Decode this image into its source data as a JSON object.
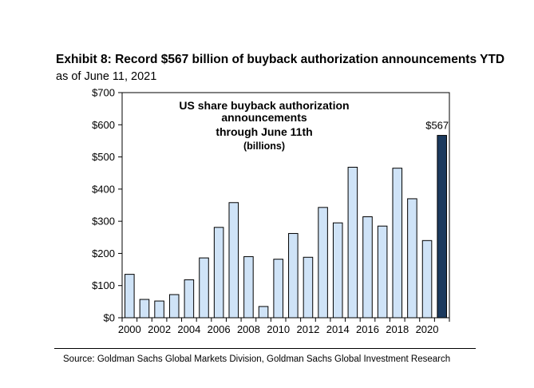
{
  "header": {
    "title": "Exhibit 8: Record $567 billion of buyback authorization announcements YTD",
    "subtitle": "as of June 11, 2021"
  },
  "footer": {
    "source": "Source: Goldman Sachs Global Markets Division, Goldman Sachs Global Investment Research"
  },
  "chart_data": {
    "type": "bar",
    "title": "Exhibit 8: Record $567 billion of buyback authorization announcements YTD",
    "subtitle": "as of June 11, 2021",
    "annotation_lines": [
      "US share buyback authorization",
      "announcements",
      "through June 11th",
      "(billions)"
    ],
    "categories": [
      "2000",
      "2001",
      "2002",
      "2003",
      "2004",
      "2005",
      "2006",
      "2007",
      "2008",
      "2009",
      "2010",
      "2011",
      "2012",
      "2013",
      "2014",
      "2015",
      "2016",
      "2017",
      "2018",
      "2019",
      "2020",
      "2021"
    ],
    "x_tick_labels": [
      "2000",
      "2002",
      "2004",
      "2006",
      "2008",
      "2010",
      "2012",
      "2014",
      "2016",
      "2018",
      "2020"
    ],
    "values": [
      135,
      57,
      52,
      72,
      118,
      186,
      281,
      358,
      190,
      35,
      182,
      262,
      188,
      343,
      295,
      468,
      314,
      285,
      465,
      370,
      240,
      567
    ],
    "highlight_index": 21,
    "data_label": "$567",
    "y_ticks": [
      0,
      100,
      200,
      300,
      400,
      500,
      600,
      700
    ],
    "y_tick_labels": [
      "$0",
      "$100",
      "$200",
      "$300",
      "$400",
      "$500",
      "$600",
      "$700"
    ],
    "ylim": [
      0,
      700
    ],
    "colors": {
      "bar": "#cfe3f7",
      "highlight": "#1c3a5e",
      "stroke": "#000000"
    },
    "grid": false
  }
}
